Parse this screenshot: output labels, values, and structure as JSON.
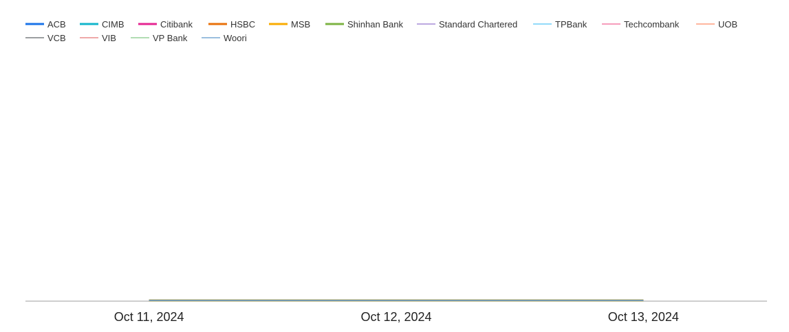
{
  "chart_data": {
    "type": "line",
    "title": "",
    "xlabel": "",
    "ylabel": "",
    "x": [
      "Oct 11, 2024",
      "Oct 12, 2024",
      "Oct 13, 2024"
    ],
    "xlim": [
      "Oct 10, 2024 12:00",
      "Oct 13, 2024 12:00"
    ],
    "ylim": [
      0,
      1
    ],
    "grid": false,
    "legend_position": "top",
    "series": [
      {
        "name": "ACB",
        "color": "#1a73e8",
        "values": [
          0,
          0,
          0
        ]
      },
      {
        "name": "CIMB",
        "color": "#12b5cb",
        "values": [
          0,
          0,
          0
        ]
      },
      {
        "name": "Citibank",
        "color": "#e52592",
        "values": [
          0,
          0,
          0
        ]
      },
      {
        "name": "HSBC",
        "color": "#e8710a",
        "values": [
          0,
          0,
          0
        ]
      },
      {
        "name": "MSB",
        "color": "#f9ab00",
        "values": [
          0,
          0,
          0
        ]
      },
      {
        "name": "Shinhan Bank",
        "color": "#7cb342",
        "values": [
          0,
          0,
          0
        ]
      },
      {
        "name": "Standard Chartered",
        "color": "#9575cd",
        "values": [
          0,
          0,
          0
        ]
      },
      {
        "name": "TPBank",
        "color": "#4fc3f7",
        "values": [
          0,
          0,
          0
        ]
      },
      {
        "name": "Techcombank",
        "color": "#f06292",
        "values": [
          0,
          0,
          0
        ]
      },
      {
        "name": "UOB",
        "color": "#ff8a65",
        "values": [
          0,
          0,
          0
        ]
      },
      {
        "name": "VCB",
        "color": "#5f6368",
        "values": [
          0,
          0,
          0
        ]
      },
      {
        "name": "VIB",
        "color": "#e57373",
        "values": [
          0,
          0,
          0
        ]
      },
      {
        "name": "VP Bank",
        "color": "#81c784",
        "values": [
          0,
          0,
          0
        ]
      },
      {
        "name": "Woori",
        "color": "#5e97c9",
        "values": [
          0,
          0,
          0
        ]
      }
    ]
  }
}
